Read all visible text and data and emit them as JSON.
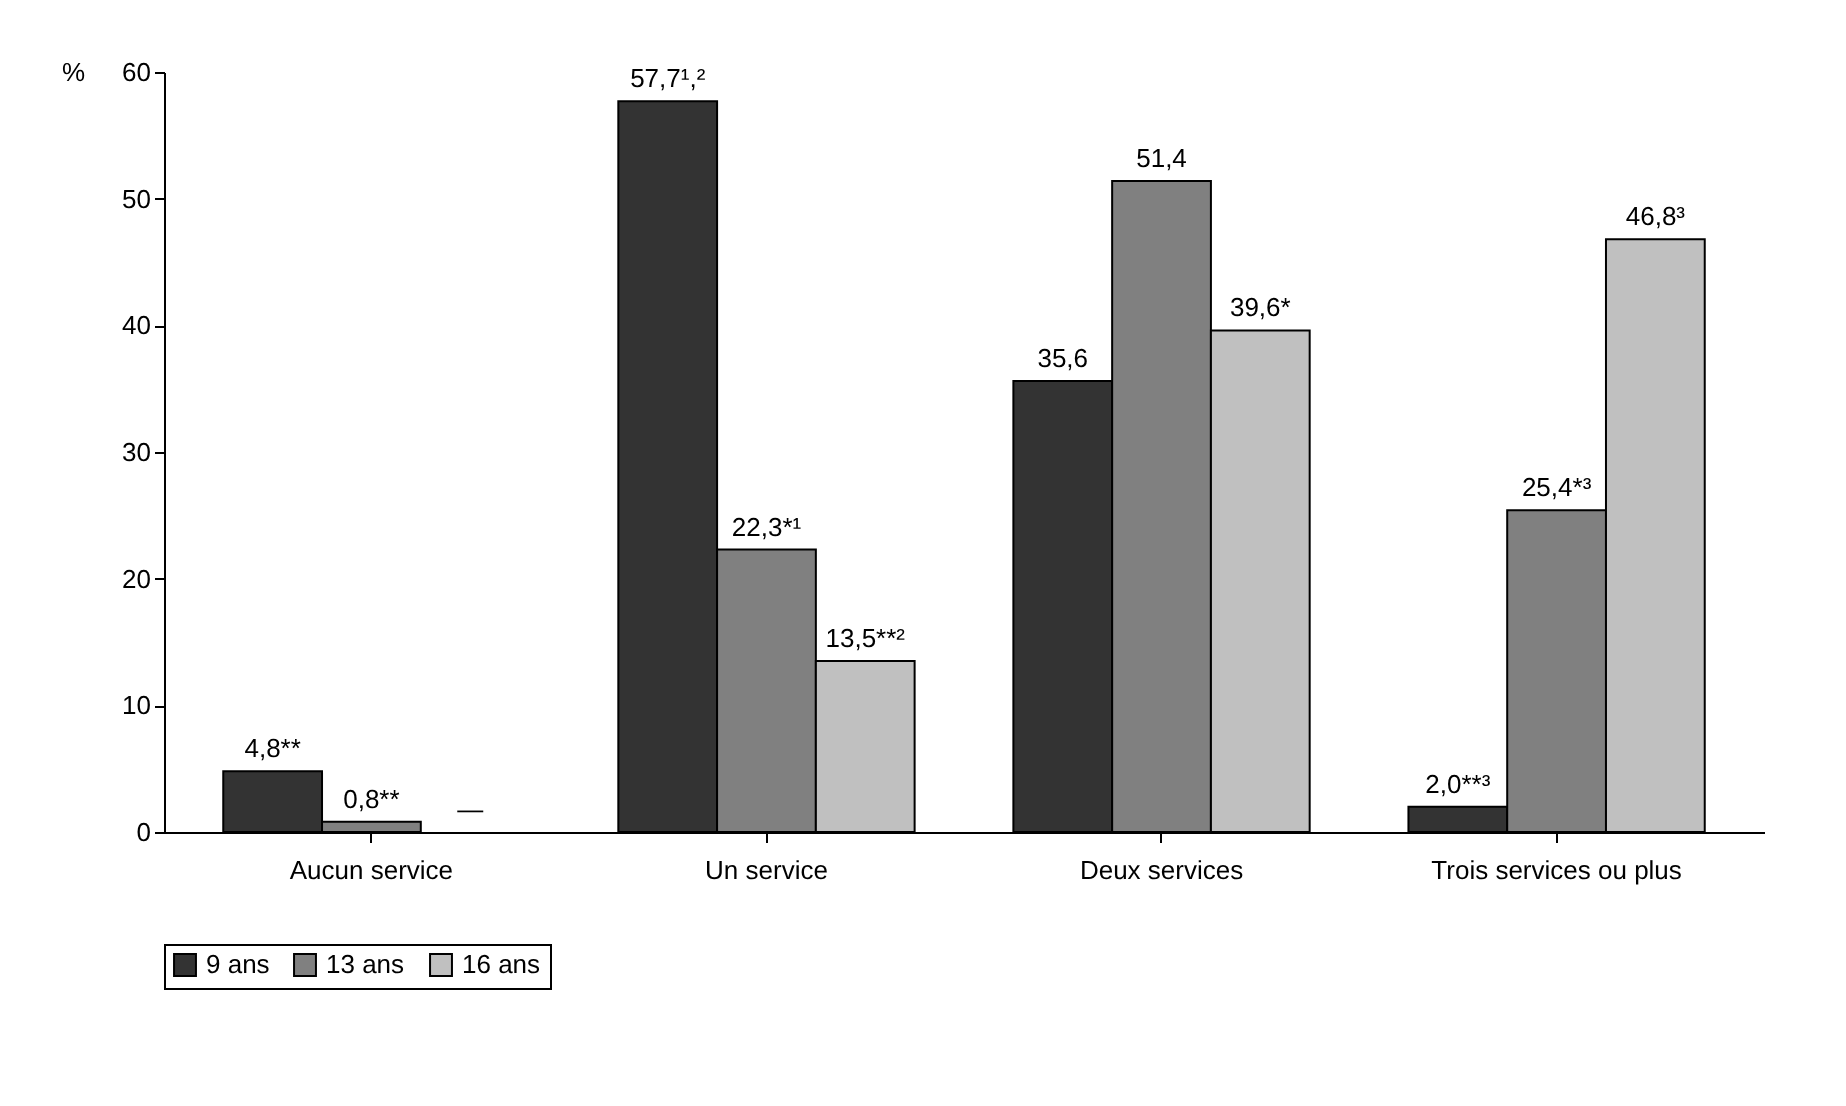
{
  "chart_data": {
    "type": "bar",
    "ylabel": "%",
    "categories": [
      "Aucun service",
      "Un service",
      "Deux services",
      "Trois services ou plus"
    ],
    "series": [
      {
        "name": "9 ans",
        "color": "#333333",
        "values": [
          4.8,
          57.7,
          35.6,
          2.0
        ],
        "value_labels": [
          "4,8**",
          "57,7¹,²",
          "35,6",
          "2,0**³"
        ]
      },
      {
        "name": "13 ans",
        "color": "#808080",
        "values": [
          0.8,
          22.3,
          51.4,
          25.4
        ],
        "value_labels": [
          "0,8**",
          "22,3*¹",
          "51,4",
          "25,4*³"
        ]
      },
      {
        "name": "16 ans",
        "color": "#c0c0c0",
        "values": [
          null,
          13.5,
          39.6,
          46.8
        ],
        "value_labels": [
          "—",
          "13,5**²",
          "39,6*",
          "46,8³"
        ]
      }
    ],
    "ylim": [
      0,
      60
    ],
    "yticks": [
      0,
      10,
      20,
      30,
      40,
      50,
      60
    ],
    "grid": false,
    "legend": "bottom"
  }
}
